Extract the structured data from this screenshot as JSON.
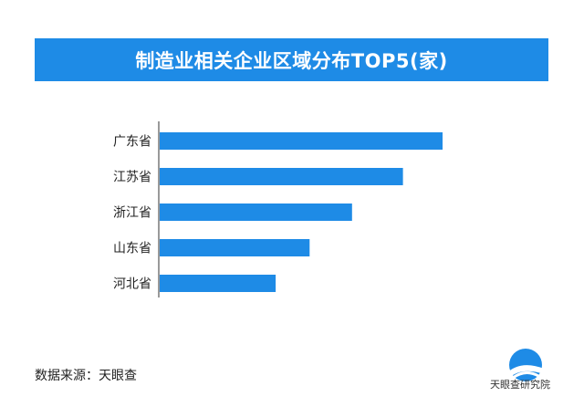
{
  "header": {
    "title": "制造业相关企业区域分布TOP5(家)"
  },
  "footer": {
    "source": "数据来源：天眼查",
    "logo_text": "天眼查研究院"
  },
  "colors": {
    "bar": "#1e8be6",
    "title_bg": "#1e8be6",
    "axis": "#333333"
  },
  "chart_data": {
    "type": "bar",
    "orientation": "horizontal",
    "title": "制造业相关企业区域分布TOP5(家)",
    "categories": [
      "广东省",
      "江苏省",
      "浙江省",
      "山东省",
      "河北省"
    ],
    "values": [
      100,
      86,
      68,
      53,
      41
    ],
    "xlim": [
      0,
      100
    ],
    "grid": false,
    "value_labels_shown": false
  }
}
